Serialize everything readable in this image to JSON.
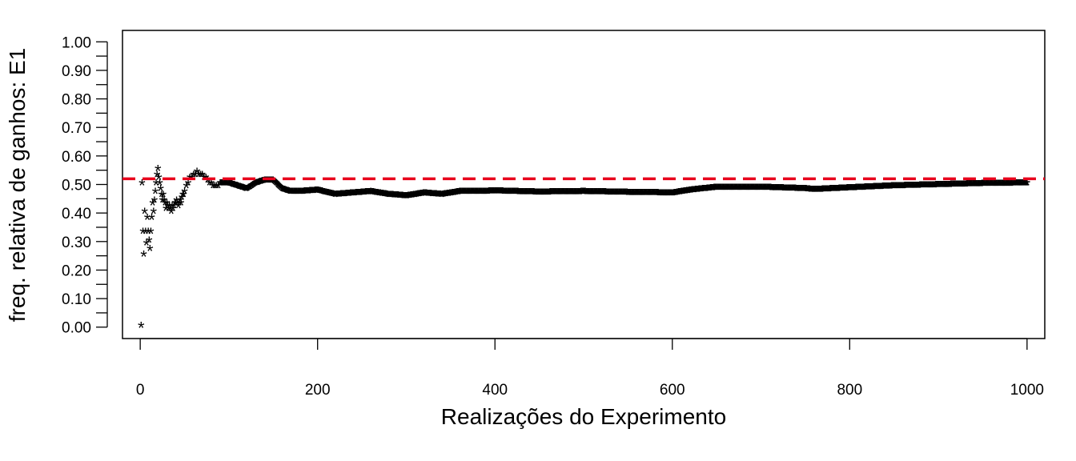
{
  "chart_data": {
    "type": "scatter",
    "marker": "*",
    "xlabel": "Realizações do Experimento",
    "ylabel": "freq. relativa de ganhos: E1",
    "xlim": [
      -20,
      1020
    ],
    "ylim": [
      -0.04,
      1.04
    ],
    "xticks": [
      0,
      200,
      400,
      600,
      800,
      1000
    ],
    "yticks": [
      "0.00",
      "0.10",
      "0.20",
      "0.30",
      "0.40",
      "0.50",
      "0.60",
      "0.70",
      "0.80",
      "0.90",
      "1.00"
    ],
    "minor_ytick_step": 0.05,
    "reference_line": {
      "y": 0.52,
      "color": "#e8001c",
      "style": "dashed"
    },
    "point_color": "#000000",
    "series_early": {
      "x": [
        1,
        2,
        3,
        4,
        5,
        6,
        7,
        8,
        9,
        10,
        11,
        12,
        13,
        14,
        15,
        16,
        17,
        18,
        19,
        20,
        21,
        22,
        23,
        24,
        25,
        26,
        27,
        28,
        29,
        30,
        31,
        32,
        33,
        34,
        35,
        36,
        37,
        38,
        39,
        40,
        41,
        42,
        43,
        44,
        45,
        46,
        47,
        48,
        49,
        50,
        52,
        54,
        56,
        58,
        60,
        62,
        64,
        66,
        68,
        70,
        72,
        74,
        76,
        78,
        80,
        82,
        84,
        86,
        88,
        90
      ],
      "y": [
        0.0,
        0.5,
        0.33,
        0.25,
        0.4,
        0.33,
        0.29,
        0.38,
        0.33,
        0.3,
        0.27,
        0.33,
        0.38,
        0.43,
        0.4,
        0.44,
        0.47,
        0.5,
        0.53,
        0.55,
        0.52,
        0.5,
        0.48,
        0.46,
        0.44,
        0.46,
        0.44,
        0.43,
        0.41,
        0.43,
        0.42,
        0.41,
        0.42,
        0.41,
        0.4,
        0.42,
        0.41,
        0.42,
        0.43,
        0.43,
        0.44,
        0.43,
        0.42,
        0.43,
        0.44,
        0.43,
        0.45,
        0.46,
        0.46,
        0.47,
        0.49,
        0.5,
        0.52,
        0.52,
        0.53,
        0.53,
        0.54,
        0.53,
        0.53,
        0.53,
        0.52,
        0.52,
        0.51,
        0.5,
        0.5,
        0.49,
        0.49,
        0.49,
        0.49,
        0.5
      ]
    },
    "series_knots": {
      "x": [
        90,
        100,
        110,
        120,
        130,
        140,
        150,
        160,
        170,
        180,
        200,
        220,
        240,
        260,
        280,
        300,
        320,
        340,
        360,
        380,
        400,
        450,
        500,
        550,
        600,
        620,
        650,
        700,
        750,
        760,
        800,
        850,
        900,
        950,
        1000
      ],
      "y": [
        0.5,
        0.5,
        0.49,
        0.48,
        0.5,
        0.51,
        0.51,
        0.48,
        0.47,
        0.47,
        0.475,
        0.46,
        0.465,
        0.47,
        0.46,
        0.455,
        0.465,
        0.46,
        0.47,
        0.47,
        0.472,
        0.468,
        0.47,
        0.467,
        0.465,
        0.475,
        0.485,
        0.485,
        0.48,
        0.477,
        0.483,
        0.49,
        0.494,
        0.498,
        0.5
      ]
    }
  }
}
